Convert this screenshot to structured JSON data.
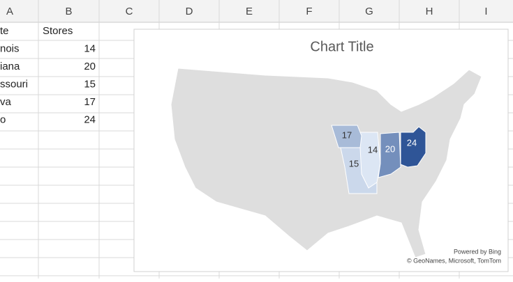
{
  "sheet": {
    "columns": [
      "A",
      "B",
      "C",
      "D",
      "E",
      "F",
      "G",
      "H",
      "I"
    ],
    "rows": [
      [
        "te",
        "Stores"
      ],
      [
        "nois",
        14
      ],
      [
        "iana",
        20
      ],
      [
        "ssouri",
        15
      ],
      [
        "va",
        17
      ],
      [
        "o",
        24
      ]
    ]
  },
  "map": {
    "title": "Chart Title",
    "colors": [
      "#dce6f4",
      "#2f5597"
    ],
    "land_color": "#dedede",
    "credits": [
      "Powered by Bing",
      "© GeoNames, Microsoft, TomTom"
    ]
  }
}
